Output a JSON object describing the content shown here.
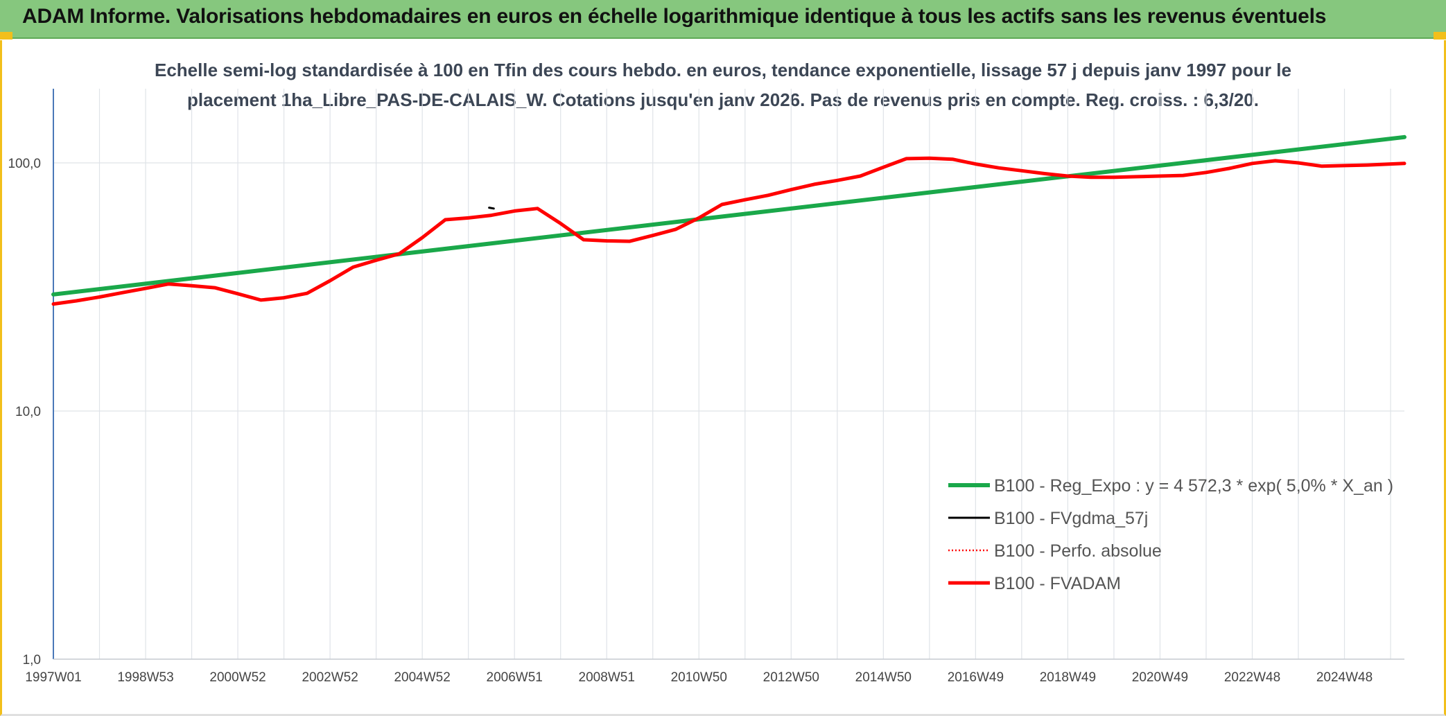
{
  "banner": {
    "title": "ADAM Informe. Valorisations hebdomadaires en euros en échelle logarithmique identique à tous les actifs sans les revenus éventuels",
    "background": "#86c77e",
    "accent": "#f2bf1b"
  },
  "chart_data": {
    "type": "line",
    "subtitle_line1": "Echelle semi-log standardisée à 100 en Tfin des cours hebdo. en euros, tendance exponentielle, lissage 57 j depuis janv 1997 pour le",
    "subtitle_line2": "placement 1ha_Libre_PAS-DE-CALAIS_W. Cotations jusqu'en janv 2026. Pas de revenus pris en compte. Reg. croiss. : 6,3/20.",
    "y_scale": "log",
    "ylim": [
      1,
      200
    ],
    "xlim": [
      1997.0,
      2026.3
    ],
    "grid": true,
    "y_ticks": [
      {
        "value": 1,
        "label": "1,0"
      },
      {
        "value": 10,
        "label": "10,0"
      },
      {
        "value": 100,
        "label": "100,0"
      }
    ],
    "x_ticks": [
      {
        "value": 1997.0,
        "label": "1997W01"
      },
      {
        "value": 1999.0,
        "label": "1998W53"
      },
      {
        "value": 2001.0,
        "label": "2000W52"
      },
      {
        "value": 2003.0,
        "label": "2002W52"
      },
      {
        "value": 2005.0,
        "label": "2004W52"
      },
      {
        "value": 2007.0,
        "label": "2006W51"
      },
      {
        "value": 2009.0,
        "label": "2008W51"
      },
      {
        "value": 2011.0,
        "label": "2010W50"
      },
      {
        "value": 2013.0,
        "label": "2012W50"
      },
      {
        "value": 2015.0,
        "label": "2014W50"
      },
      {
        "value": 2017.0,
        "label": "2016W49"
      },
      {
        "value": 2019.0,
        "label": "2018W49"
      },
      {
        "value": 2021.0,
        "label": "2020W49"
      },
      {
        "value": 2023.0,
        "label": "2022W48"
      },
      {
        "value": 2025.0,
        "label": "2024W48"
      }
    ],
    "legend_position": "lower-right",
    "series": [
      {
        "name": "B100 - Reg_Expo : y = 4 572,3 * exp( 5,0% *  X_an )",
        "color": "#1aa84a",
        "style": "solid",
        "x": [
          1997.0,
          2026.3
        ],
        "values": [
          29.5,
          127.0
        ]
      },
      {
        "name": "B100 - FVgdma_57j",
        "color": "#000000",
        "style": "solid",
        "x": [
          2006.45,
          2006.55
        ],
        "values": [
          66.0,
          65.5
        ]
      },
      {
        "name": "B100 - Perfo. absolue",
        "color": "#ff0000",
        "style": "dotted",
        "x": [],
        "values": []
      },
      {
        "name": "B100 - FVADAM",
        "color": "#ff0000",
        "style": "solid",
        "x": [
          1997.0,
          1997.5,
          1998.0,
          1998.5,
          1999.0,
          1999.5,
          2000.0,
          2000.5,
          2001.0,
          2001.5,
          2002.0,
          2002.5,
          2003.0,
          2003.5,
          2004.0,
          2004.5,
          2005.0,
          2005.5,
          2006.0,
          2006.5,
          2007.0,
          2007.5,
          2008.0,
          2008.5,
          2009.0,
          2009.5,
          2010.0,
          2010.5,
          2011.0,
          2011.5,
          2012.0,
          2012.5,
          2013.0,
          2013.5,
          2014.0,
          2014.5,
          2015.0,
          2015.5,
          2016.0,
          2016.5,
          2017.0,
          2017.5,
          2018.0,
          2018.5,
          2019.0,
          2019.5,
          2020.0,
          2020.5,
          2021.0,
          2021.5,
          2022.0,
          2022.5,
          2023.0,
          2023.5,
          2024.0,
          2024.5,
          2025.0,
          2025.5,
          2026.0,
          2026.3
        ],
        "values": [
          27.0,
          27.8,
          28.8,
          30.0,
          31.2,
          32.5,
          32.0,
          31.4,
          29.7,
          28.0,
          28.6,
          29.8,
          33.5,
          38.0,
          40.5,
          43.0,
          50.0,
          59.0,
          60.0,
          61.5,
          64.0,
          65.5,
          57.0,
          49.0,
          48.5,
          48.3,
          51.0,
          54.0,
          60.0,
          68.0,
          71.0,
          74.0,
          78.0,
          82.0,
          85.0,
          88.5,
          96.0,
          104.0,
          104.5,
          103.5,
          99.0,
          95.5,
          93.0,
          90.5,
          88.5,
          87.5,
          87.5,
          88.0,
          88.5,
          89.0,
          91.5,
          95.0,
          99.5,
          102.0,
          100.0,
          97.0,
          97.5,
          98.0,
          99.0,
          99.5
        ]
      }
    ]
  }
}
